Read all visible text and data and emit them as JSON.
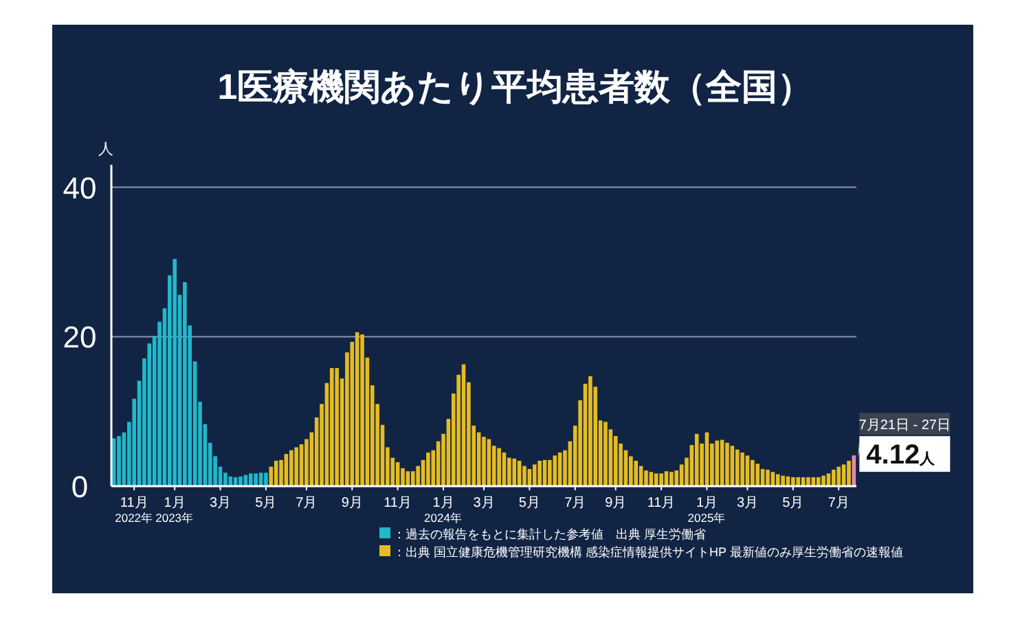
{
  "chart_data": {
    "type": "bar",
    "title": "1医療機関あたり平均患者数（全国）",
    "ylabel": "人",
    "categories": [
      null,
      null,
      null,
      null,
      "11月\n2022年",
      null,
      null,
      null,
      null,
      null,
      null,
      null,
      "1月\n2023年",
      null,
      null,
      null,
      null,
      null,
      null,
      null,
      null,
      "3月",
      null,
      null,
      null,
      null,
      null,
      null,
      null,
      null,
      "5月",
      null,
      null,
      null,
      null,
      null,
      null,
      null,
      "7月",
      null,
      null,
      null,
      null,
      null,
      null,
      null,
      null,
      "9月",
      null,
      null,
      null,
      null,
      null,
      null,
      null,
      null,
      "11月",
      null,
      null,
      null,
      null,
      null,
      null,
      null,
      null,
      "1月\n2024年",
      null,
      null,
      null,
      null,
      null,
      null,
      null,
      "3月",
      null,
      null,
      null,
      null,
      null,
      null,
      null,
      null,
      "5月",
      null,
      null,
      null,
      null,
      null,
      null,
      null,
      null,
      "7月",
      null,
      null,
      null,
      null,
      null,
      null,
      null,
      "9月",
      null,
      null,
      null,
      null,
      null,
      null,
      null,
      null,
      "11月",
      null,
      null,
      null,
      null,
      null,
      null,
      null,
      null,
      "1月\n2025年",
      null,
      null,
      null,
      null,
      null,
      null,
      null,
      "3月",
      null,
      null,
      null,
      null,
      null,
      null,
      null,
      null,
      "5月",
      null,
      null,
      null,
      null,
      null,
      null,
      null,
      null,
      "7月",
      null,
      null,
      null
    ],
    "series": [
      {
        "name": "：過去の報告をもとに集計した参考値　出典 厚生労働省",
        "color": "#22b8c8",
        "values": [
          6.4,
          6.7,
          7.2,
          8.6,
          11.7,
          14.1,
          17.1,
          19.1,
          20.1,
          22.0,
          23.8,
          28.2,
          30.4,
          25.6,
          27.3,
          21.5,
          16.7,
          11.3,
          8.3,
          5.8,
          4.0,
          2.6,
          1.8,
          1.3,
          1.2,
          1.3,
          1.5,
          1.7,
          1.7,
          1.8,
          1.8,
          null,
          null,
          null,
          null,
          null,
          null,
          null,
          null,
          null,
          null,
          null,
          null,
          null,
          null,
          null,
          null,
          null,
          null,
          null,
          null,
          null,
          null,
          null,
          null,
          null,
          null,
          null,
          null,
          null,
          null,
          null,
          null,
          null,
          null,
          null,
          null,
          null,
          null,
          null,
          null,
          null,
          null,
          null,
          null,
          null,
          null,
          null,
          null,
          null,
          null,
          null,
          null,
          null,
          null,
          null,
          null,
          null,
          null,
          null,
          null,
          null,
          null,
          null,
          null,
          null,
          null,
          null,
          null,
          null,
          null,
          null,
          null,
          null,
          null,
          null,
          null,
          null,
          null,
          null,
          null,
          null,
          null,
          null,
          null,
          null,
          null,
          null,
          null,
          null,
          null,
          null,
          null,
          null,
          null,
          null,
          null,
          null,
          null,
          null,
          null,
          null,
          null,
          null,
          null,
          null,
          null,
          null,
          null,
          null,
          null,
          null,
          null,
          null,
          null,
          null,
          null
        ]
      },
      {
        "name": "：出典 国立健康危機管理研究機構 感染症情報提供サイトHP 最新値のみ厚生労働省の速報値",
        "color": "#e5bc22",
        "values": [
          null,
          null,
          null,
          null,
          null,
          null,
          null,
          null,
          null,
          null,
          null,
          null,
          null,
          null,
          null,
          null,
          null,
          null,
          null,
          null,
          null,
          null,
          null,
          null,
          null,
          null,
          null,
          null,
          null,
          null,
          null,
          2.6,
          3.4,
          3.5,
          4.3,
          4.8,
          5.2,
          5.6,
          6.3,
          7.2,
          9.2,
          11.0,
          13.8,
          15.8,
          15.8,
          14.4,
          17.9,
          19.3,
          20.6,
          20.3,
          17.2,
          13.5,
          11.0,
          8.2,
          5.2,
          3.8,
          3.2,
          2.4,
          2.0,
          2.0,
          2.7,
          3.5,
          4.5,
          4.8,
          6.0,
          7.0,
          9.0,
          12.4,
          14.9,
          16.3,
          13.9,
          8.1,
          7.2,
          6.6,
          6.3,
          5.4,
          5.1,
          4.5,
          3.8,
          3.7,
          3.4,
          2.7,
          2.3,
          2.9,
          3.4,
          3.5,
          3.5,
          4.1,
          4.5,
          4.8,
          6.0,
          8.1,
          11.5,
          13.7,
          14.7,
          13.3,
          8.8,
          8.6,
          7.6,
          6.7,
          5.7,
          4.8,
          4.0,
          3.4,
          2.7,
          2.1,
          1.9,
          1.7,
          1.7,
          2.0,
          1.9,
          2.1,
          2.9,
          3.8,
          5.5,
          7.0,
          5.7,
          7.2,
          5.7,
          6.1,
          6.2,
          5.8,
          5.4,
          4.9,
          4.5,
          4.1,
          3.5,
          3.0,
          2.3,
          2.2,
          1.9,
          1.6,
          1.4,
          1.3,
          1.2,
          1.2,
          1.2,
          1.2,
          1.2,
          1.2,
          1.4,
          1.7,
          2.2,
          2.6,
          2.9,
          3.4,
          null
        ]
      },
      {
        "color": "#e58aa2",
        "values": [
          null,
          null,
          null,
          null,
          null,
          null,
          null,
          null,
          null,
          null,
          null,
          null,
          null,
          null,
          null,
          null,
          null,
          null,
          null,
          null,
          null,
          null,
          null,
          null,
          null,
          null,
          null,
          null,
          null,
          null,
          null,
          null,
          null,
          null,
          null,
          null,
          null,
          null,
          null,
          null,
          null,
          null,
          null,
          null,
          null,
          null,
          null,
          null,
          null,
          null,
          null,
          null,
          null,
          null,
          null,
          null,
          null,
          null,
          null,
          null,
          null,
          null,
          null,
          null,
          null,
          null,
          null,
          null,
          null,
          null,
          null,
          null,
          null,
          null,
          null,
          null,
          null,
          null,
          null,
          null,
          null,
          null,
          null,
          null,
          null,
          null,
          null,
          null,
          null,
          null,
          null,
          null,
          null,
          null,
          null,
          null,
          null,
          null,
          null,
          null,
          null,
          null,
          null,
          null,
          null,
          null,
          null,
          null,
          null,
          null,
          null,
          null,
          null,
          null,
          null,
          null,
          null,
          null,
          null,
          null,
          null,
          null,
          null,
          null,
          null,
          null,
          null,
          null,
          null,
          null,
          null,
          null,
          null,
          null,
          null,
          null,
          null,
          null,
          null,
          null,
          null,
          null,
          null,
          null,
          null,
          null,
          4.12
        ],
        "value_labels": [
          null,
          null,
          null,
          null,
          null,
          null,
          null,
          null,
          null,
          null,
          null,
          null,
          null,
          null,
          null,
          null,
          null,
          null,
          null,
          null,
          null,
          null,
          null,
          null,
          null,
          null,
          null,
          null,
          null,
          null,
          null,
          null,
          null,
          null,
          null,
          null,
          null,
          null,
          null,
          null,
          null,
          null,
          null,
          null,
          null,
          null,
          null,
          null,
          null,
          null,
          null,
          null,
          null,
          null,
          null,
          null,
          null,
          null,
          null,
          null,
          null,
          null,
          null,
          null,
          null,
          null,
          null,
          null,
          null,
          null,
          null,
          null,
          null,
          null,
          null,
          null,
          null,
          null,
          null,
          null,
          null,
          null,
          null,
          null,
          null,
          null,
          null,
          null,
          null,
          null,
          null,
          null,
          null,
          null,
          null,
          null,
          null,
          null,
          null,
          null,
          null,
          null,
          null,
          null,
          null,
          null,
          null,
          null,
          null,
          null,
          null,
          null,
          null,
          null,
          null,
          null,
          null,
          null,
          null,
          null,
          null,
          null,
          null,
          null,
          null,
          null,
          null,
          null,
          null,
          null,
          null,
          null,
          null,
          null,
          null,
          null,
          null,
          null,
          null,
          null,
          null,
          null,
          null,
          null,
          null,
          null,
          "4.12人"
        ]
      }
    ],
    "annotations": [
      "7月21日 - 27日"
    ],
    "ylim": [
      0,
      43
    ],
    "yticks": [
      0,
      20,
      40
    ],
    "grid": "y",
    "legend": "bottom"
  }
}
